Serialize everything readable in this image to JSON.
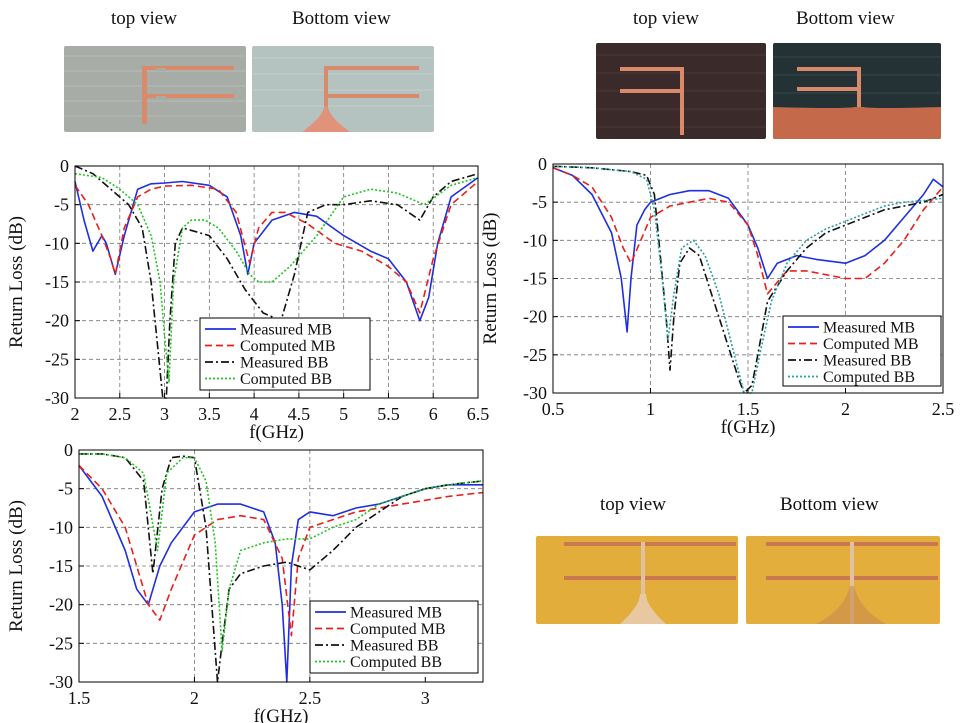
{
  "captions": {
    "c1_top": "top view",
    "c1_bottom": "Bottom view",
    "c2_top": "top view",
    "c2_bottom": "Bottom view",
    "c3_top": "top view",
    "c3_bottom": "Bottom view"
  },
  "colors": {
    "measured_mb": "#1f2fe0",
    "computed_mb": "#e8201a",
    "measured_bb": "#111111",
    "computed_bb": "#22c322",
    "computed_bb_alt": "#2aa0a0",
    "photo1_top_bg": "#a8aca6",
    "photo1_bottom_bg": "#b4c2c0",
    "photo2_top_bg": "#3a2a2a",
    "photo2_bottom_bg": "#243236",
    "photo3_bg": "#e2ad3a",
    "copper": "#d98a6a"
  },
  "chart_data": [
    {
      "type": "line",
      "xlabel": "f(GHz)",
      "ylabel": "Return Loss (dB)",
      "xlim": [
        2,
        6.5
      ],
      "ylim": [
        -30,
        0
      ],
      "xticks": [
        "2",
        "2.5",
        "3",
        "3.5",
        "4",
        "4.5",
        "5",
        "5.5",
        "6",
        "6.5"
      ],
      "yticks": [
        "0",
        "-5",
        "-10",
        "-15",
        "-20",
        "-25",
        "-30"
      ],
      "grid": true,
      "legend_position": "bottom-right",
      "series": [
        {
          "name": "Measured MB",
          "style": "solid",
          "color_key": "measured_mb",
          "x": [
            2,
            2.1,
            2.2,
            2.3,
            2.35,
            2.45,
            2.55,
            2.7,
            2.85,
            3.0,
            3.2,
            3.5,
            3.7,
            3.85,
            3.93,
            4.0,
            4.2,
            4.45,
            4.7,
            5.0,
            5.3,
            5.5,
            5.7,
            5.85,
            5.95,
            6.05,
            6.2,
            6.5
          ],
          "y": [
            -2,
            -7,
            -11,
            -9,
            -10,
            -14,
            -9,
            -3,
            -2.3,
            -2.2,
            -2,
            -2.5,
            -4,
            -9,
            -14,
            -10,
            -7,
            -6,
            -6.5,
            -9,
            -11,
            -12,
            -15,
            -20,
            -17,
            -10,
            -4,
            -1.5
          ]
        },
        {
          "name": "Computed MB",
          "style": "dashed",
          "color_key": "computed_mb",
          "x": [
            2,
            2.15,
            2.3,
            2.4,
            2.45,
            2.55,
            2.7,
            2.85,
            3.0,
            3.3,
            3.6,
            3.8,
            3.95,
            4.05,
            4.2,
            4.35,
            4.6,
            4.9,
            5.2,
            5.5,
            5.7,
            5.85,
            6.0,
            6.2,
            6.5
          ],
          "y": [
            -2.5,
            -5,
            -9,
            -12,
            -14,
            -8,
            -4,
            -3,
            -2.6,
            -2.5,
            -3,
            -6,
            -12.5,
            -8,
            -6,
            -6,
            -7.5,
            -10,
            -11,
            -13,
            -15,
            -19,
            -12,
            -5,
            -2
          ]
        },
        {
          "name": "Measured BB",
          "style": "dashdot",
          "color_key": "measured_bb",
          "x": [
            2,
            2.2,
            2.4,
            2.6,
            2.75,
            2.85,
            2.92,
            2.98,
            3.02,
            3.06,
            3.12,
            3.2,
            3.35,
            3.5,
            3.7,
            3.9,
            4.1,
            4.3,
            4.45,
            4.6,
            4.8,
            5.0,
            5.3,
            5.6,
            5.85,
            6.0,
            6.2,
            6.5
          ],
          "y": [
            0,
            -1,
            -3,
            -5,
            -8,
            -15,
            -23,
            -30,
            -30,
            -20,
            -10,
            -8,
            -8.5,
            -9,
            -12,
            -16,
            -19,
            -20,
            -14,
            -6,
            -5,
            -5,
            -4.5,
            -5,
            -7,
            -4,
            -2,
            -1
          ]
        },
        {
          "name": "Computed BB",
          "style": "dotted",
          "color_key": "computed_bb",
          "x": [
            2,
            2.3,
            2.5,
            2.7,
            2.85,
            2.95,
            3.0,
            3.05,
            3.1,
            3.2,
            3.3,
            3.45,
            3.6,
            3.8,
            3.95,
            4.05,
            4.2,
            4.4,
            4.7,
            5.0,
            5.3,
            5.6,
            5.9,
            6.2,
            6.5
          ],
          "y": [
            -1,
            -1.5,
            -3,
            -5,
            -9,
            -15,
            -22,
            -28,
            -15,
            -8,
            -7,
            -7,
            -8,
            -11,
            -14,
            -15,
            -15,
            -13,
            -9,
            -4,
            -3,
            -3.5,
            -5,
            -2.5,
            -1.5
          ]
        }
      ]
    },
    {
      "type": "line",
      "xlabel": "f(GHz)",
      "ylabel": "Return Loss (dB)",
      "xlim": [
        0.5,
        2.5
      ],
      "ylim": [
        -30,
        0
      ],
      "xticks": [
        "0.5",
        "1",
        "1.5",
        "2",
        "2.5"
      ],
      "yticks": [
        "0",
        "-5",
        "-10",
        "-15",
        "-20",
        "-25",
        "-30"
      ],
      "grid": true,
      "legend_position": "bottom-right",
      "series": [
        {
          "name": "Measured MB",
          "style": "solid",
          "color_key": "measured_mb",
          "x": [
            0.5,
            0.6,
            0.7,
            0.8,
            0.85,
            0.88,
            0.9,
            0.93,
            0.97,
            1.0,
            1.1,
            1.2,
            1.3,
            1.4,
            1.5,
            1.55,
            1.6,
            1.65,
            1.75,
            1.85,
            2.0,
            2.1,
            2.2,
            2.3,
            2.4,
            2.45,
            2.5
          ],
          "y": [
            -0.5,
            -1.5,
            -4,
            -9,
            -15,
            -22,
            -15,
            -8,
            -6,
            -5,
            -4,
            -3.5,
            -3.5,
            -4.5,
            -8,
            -11,
            -15,
            -13,
            -12,
            -12.5,
            -13,
            -12,
            -10,
            -7,
            -4,
            -2,
            -3
          ]
        },
        {
          "name": "Computed MB",
          "style": "dashed",
          "color_key": "computed_mb",
          "x": [
            0.5,
            0.6,
            0.7,
            0.8,
            0.86,
            0.9,
            0.95,
            1.0,
            1.1,
            1.2,
            1.3,
            1.4,
            1.5,
            1.55,
            1.6,
            1.7,
            1.8,
            1.9,
            2.0,
            2.1,
            2.2,
            2.3,
            2.4,
            2.5
          ],
          "y": [
            -0.5,
            -1.5,
            -3,
            -7,
            -11,
            -13,
            -10,
            -7,
            -5.5,
            -5,
            -4.5,
            -5,
            -8,
            -12,
            -17,
            -14,
            -14,
            -14.5,
            -15,
            -15,
            -13,
            -10,
            -6,
            -3
          ]
        },
        {
          "name": "Measured BB",
          "style": "dashdot",
          "color_key": "measured_bb",
          "x": [
            0.5,
            0.7,
            0.9,
            0.98,
            1.02,
            1.05,
            1.08,
            1.1,
            1.12,
            1.15,
            1.2,
            1.25,
            1.3,
            1.35,
            1.4,
            1.45,
            1.48,
            1.52,
            1.55,
            1.6,
            1.7,
            1.8,
            1.9,
            2.0,
            2.1,
            2.2,
            2.3,
            2.4,
            2.5
          ],
          "y": [
            -0.3,
            -0.5,
            -1,
            -1.5,
            -4,
            -12,
            -20,
            -27,
            -20,
            -13,
            -11,
            -12,
            -16,
            -20,
            -24,
            -28,
            -30,
            -29,
            -25,
            -18,
            -14,
            -11,
            -9,
            -8,
            -7,
            -6,
            -5.5,
            -5,
            -4
          ]
        },
        {
          "name": "Computed BB",
          "style": "dotted",
          "color_key": "computed_bb_alt",
          "x": [
            0.5,
            0.7,
            0.9,
            0.98,
            1.02,
            1.06,
            1.09,
            1.12,
            1.16,
            1.22,
            1.28,
            1.35,
            1.42,
            1.48,
            1.52,
            1.56,
            1.62,
            1.7,
            1.8,
            1.9,
            2.0,
            2.1,
            2.2,
            2.3,
            2.4,
            2.5
          ],
          "y": [
            -0.3,
            -0.5,
            -1,
            -2,
            -6,
            -15,
            -23,
            -17,
            -11,
            -10,
            -12,
            -17,
            -24,
            -30,
            -30,
            -25,
            -18,
            -13,
            -10,
            -8.5,
            -7.5,
            -6.5,
            -5.5,
            -5,
            -4.8,
            -4.5
          ]
        }
      ]
    },
    {
      "type": "line",
      "xlabel": "f(GHz)",
      "ylabel": "Return Loss (dB)",
      "xlim": [
        1.5,
        3.25
      ],
      "ylim": [
        -30,
        0
      ],
      "xticks": [
        "1.5",
        "2",
        "2.5",
        "3"
      ],
      "yticks": [
        "0",
        "-5",
        "-10",
        "-15",
        "-20",
        "-25",
        "-30"
      ],
      "grid": true,
      "legend_position": "bottom-right",
      "series": [
        {
          "name": "Measured MB",
          "style": "solid",
          "color_key": "measured_mb",
          "x": [
            1.5,
            1.6,
            1.7,
            1.75,
            1.8,
            1.85,
            1.9,
            2.0,
            2.1,
            2.2,
            2.3,
            2.35,
            2.38,
            2.4,
            2.42,
            2.45,
            2.5,
            2.6,
            2.7,
            2.8,
            2.9,
            3.0,
            3.1,
            3.25
          ],
          "y": [
            -2,
            -6,
            -13,
            -18,
            -20,
            -15,
            -12,
            -8,
            -7,
            -7,
            -8,
            -12,
            -20,
            -30,
            -15,
            -9,
            -8,
            -8.5,
            -7.5,
            -7,
            -6,
            -5,
            -4.5,
            -4.5
          ]
        },
        {
          "name": "Computed MB",
          "style": "dashed",
          "color_key": "computed_mb",
          "x": [
            1.5,
            1.6,
            1.7,
            1.75,
            1.8,
            1.85,
            1.9,
            2.0,
            2.1,
            2.2,
            2.3,
            2.38,
            2.42,
            2.45,
            2.5,
            2.6,
            2.7,
            2.8,
            2.9,
            3.0,
            3.1,
            3.25
          ],
          "y": [
            -2,
            -5,
            -10,
            -15,
            -20,
            -22,
            -18,
            -11,
            -9,
            -8.5,
            -9,
            -14,
            -24,
            -14,
            -10,
            -9,
            -8,
            -7.5,
            -7,
            -6.5,
            -6,
            -5.5
          ]
        },
        {
          "name": "Measured BB",
          "style": "dashdot",
          "color_key": "measured_bb",
          "x": [
            1.5,
            1.6,
            1.7,
            1.78,
            1.82,
            1.86,
            1.9,
            1.95,
            2.0,
            2.05,
            2.08,
            2.1,
            2.12,
            2.15,
            2.2,
            2.3,
            2.4,
            2.5,
            2.6,
            2.7,
            2.8,
            2.9,
            3.0,
            3.1,
            3.25
          ],
          "y": [
            -0.5,
            -0.5,
            -1,
            -4,
            -16,
            -5,
            -1,
            -0.8,
            -1,
            -10,
            -22,
            -30,
            -25,
            -18,
            -16,
            -15,
            -14.5,
            -15.5,
            -13,
            -10,
            -8,
            -6,
            -5,
            -4.5,
            -4
          ]
        },
        {
          "name": "Computed BB",
          "style": "dotted",
          "color_key": "computed_bb",
          "x": [
            1.5,
            1.6,
            1.7,
            1.78,
            1.81,
            1.84,
            1.88,
            1.95,
            2.0,
            2.05,
            2.09,
            2.12,
            2.15,
            2.2,
            2.3,
            2.4,
            2.5,
            2.6,
            2.7,
            2.8,
            2.9,
            3.0,
            3.1,
            3.25
          ],
          "y": [
            -0.5,
            -0.5,
            -1,
            -3,
            -8,
            -13,
            -3,
            -1,
            -1,
            -4,
            -12,
            -26,
            -18,
            -13,
            -12,
            -11.5,
            -11.5,
            -10,
            -9,
            -7,
            -6,
            -5,
            -4.5,
            -4
          ]
        }
      ]
    }
  ]
}
